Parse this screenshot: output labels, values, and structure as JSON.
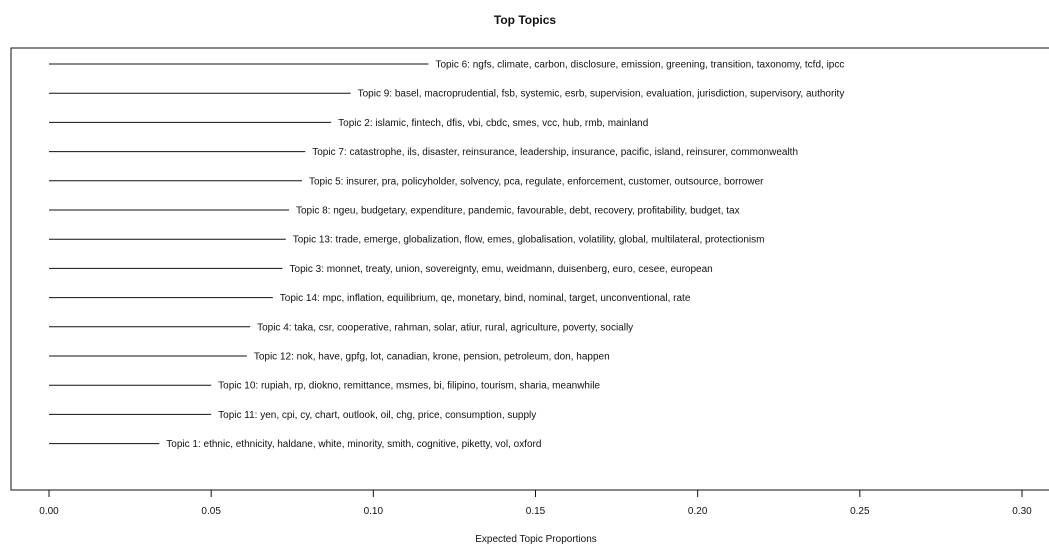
{
  "chart_data": {
    "type": "bar",
    "orientation": "horizontal",
    "title": "Top Topics",
    "xlabel": "Expected Topic Proportions",
    "ylabel": "",
    "xlim": [
      0.0,
      0.3
    ],
    "xticks": [
      0.0,
      0.05,
      0.1,
      0.15,
      0.2,
      0.25,
      0.3
    ],
    "xtick_labels": [
      "0.00",
      "0.05",
      "0.10",
      "0.15",
      "0.20",
      "0.25",
      "0.30"
    ],
    "grid": false,
    "legend": "none",
    "colors": {
      "line": "#111111",
      "text": "#111111",
      "axis": "#111111",
      "frame": "#111111"
    },
    "items": [
      {
        "topic": 6,
        "label": "Topic 6: ngfs, climate, carbon, disclosure, emission, greening, transition, taxonomy, tcfd, ipcc",
        "value": 0.117
      },
      {
        "topic": 9,
        "label": "Topic 9: basel, macroprudential, fsb, systemic, esrb, supervision, evaluation, jurisdiction, supervisory, authority",
        "value": 0.093
      },
      {
        "topic": 2,
        "label": "Topic 2: islamic, fintech, dfis, vbi, cbdc, smes, vcc, hub, rmb, mainland",
        "value": 0.087
      },
      {
        "topic": 7,
        "label": "Topic 7: catastrophe, ils, disaster, reinsurance, leadership, insurance, pacific, island, reinsurer, commonwealth",
        "value": 0.079
      },
      {
        "topic": 5,
        "label": "Topic 5: insurer, pra, policyholder, solvency, pca, regulate, enforcement, customer, outsource, borrower",
        "value": 0.078
      },
      {
        "topic": 8,
        "label": "Topic 8: ngeu, budgetary, expenditure, pandemic, favourable, debt, recovery, profitability, budget, tax",
        "value": 0.074
      },
      {
        "topic": 13,
        "label": "Topic 13: trade, emerge, globalization, flow, emes, globalisation, volatility, global, multilateral, protectionism",
        "value": 0.073
      },
      {
        "topic": 3,
        "label": "Topic 3: monnet, treaty, union, sovereignty, emu, weidmann, duisenberg, euro, cesee, european",
        "value": 0.072
      },
      {
        "topic": 14,
        "label": "Topic 14: mpc, inflation, equilibrium, qe, monetary, bind, nominal, target, unconventional, rate",
        "value": 0.069
      },
      {
        "topic": 4,
        "label": "Topic 4: taka, csr, cooperative, rahman, solar, atiur, rural, agriculture, poverty, socially",
        "value": 0.062
      },
      {
        "topic": 12,
        "label": "Topic 12: nok, have, gpfg, lot, canadian, krone, pension, petroleum, don, happen",
        "value": 0.061
      },
      {
        "topic": 10,
        "label": "Topic 10: rupiah, rp, diokno, remittance, msmes, bi, filipino, tourism, sharia, meanwhile",
        "value": 0.05
      },
      {
        "topic": 11,
        "label": "Topic 11: yen, cpi, cy, chart, outlook, oil, chg, price, consumption, supply",
        "value": 0.05
      },
      {
        "topic": 1,
        "label": "Topic 1: ethnic, ethnicity, haldane, white, minority, smith, cognitive, piketty, vol, oxford",
        "value": 0.034
      }
    ]
  }
}
